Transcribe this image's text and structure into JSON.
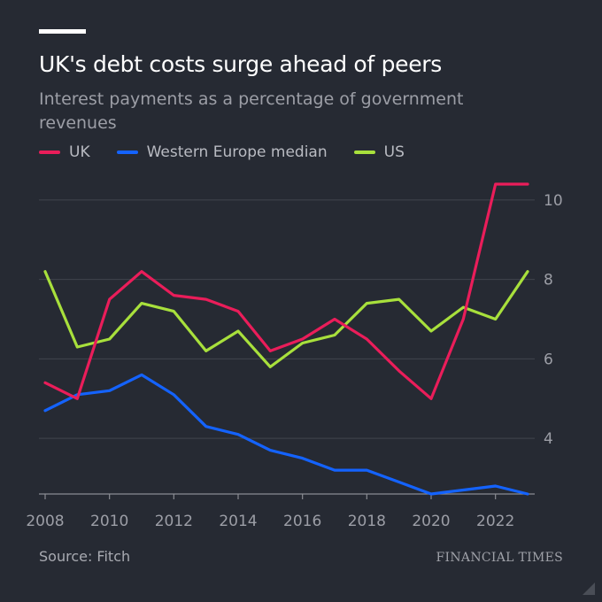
{
  "title": "UK's debt costs surge ahead of peers",
  "subtitle": "Interest payments as a percentage of government revenues",
  "source": "Source: Fitch",
  "brand": "FINANCIAL TIMES",
  "chart_data": {
    "type": "line",
    "title": "UK's debt costs surge ahead of peers",
    "subtitle": "Interest payments as a percentage of government revenues",
    "xlabel": "",
    "ylabel": "",
    "x": [
      2008,
      2009,
      2010,
      2011,
      2012,
      2013,
      2014,
      2015,
      2016,
      2017,
      2018,
      2019,
      2020,
      2021,
      2022,
      2023
    ],
    "x_ticks": [
      "2008",
      "2010",
      "2012",
      "2014",
      "2016",
      "2018",
      "2020",
      "2022"
    ],
    "y_ticks": [
      "4",
      "6",
      "8",
      "10"
    ],
    "xlim": [
      2008,
      2023
    ],
    "ylim": [
      2.6,
      10.8
    ],
    "grid": true,
    "legend_position": "top-left",
    "series": [
      {
        "name": "UK",
        "color": "#ea1d5a",
        "values": [
          5.4,
          5.0,
          7.5,
          8.2,
          7.6,
          7.5,
          7.2,
          6.2,
          6.5,
          7.0,
          6.5,
          5.7,
          5.0,
          7.0,
          10.4,
          10.4
        ]
      },
      {
        "name": "Western Europe median",
        "color": "#1463ff",
        "values": [
          4.7,
          5.1,
          5.2,
          5.6,
          5.1,
          4.3,
          4.1,
          3.7,
          3.5,
          3.2,
          3.2,
          2.9,
          2.6,
          2.7,
          2.8,
          2.6
        ]
      },
      {
        "name": "US",
        "color": "#a8e03c",
        "values": [
          8.2,
          6.3,
          6.5,
          7.4,
          7.2,
          6.2,
          6.7,
          5.8,
          6.4,
          6.6,
          7.4,
          7.5,
          6.7,
          7.3,
          7.0,
          8.2
        ]
      }
    ]
  }
}
